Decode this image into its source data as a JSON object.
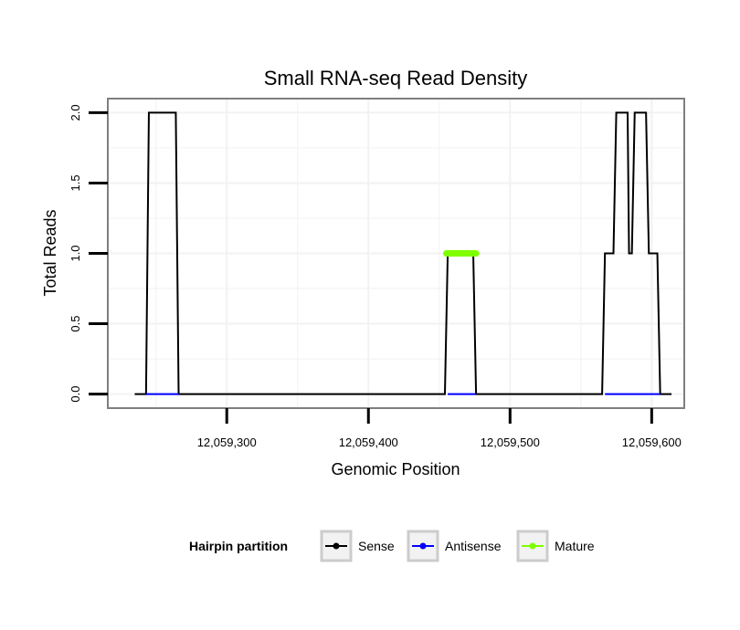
{
  "chart_data": {
    "type": "line",
    "title": "Small RNA-seq Read Density",
    "xlabel": "Genomic Position",
    "ylabel": "Total Reads",
    "xlim": [
      12059216,
      12059623
    ],
    "ylim": [
      -0.1,
      2.1
    ],
    "x_ticks": [
      {
        "value": 12059300,
        "label": "12,059,300"
      },
      {
        "value": 12059400,
        "label": "12,059,400"
      },
      {
        "value": 12059500,
        "label": "12,059,500"
      },
      {
        "value": 12059600,
        "label": "12,059,600"
      }
    ],
    "y_ticks": [
      {
        "value": 0.0,
        "label": "0.0"
      },
      {
        "value": 0.5,
        "label": "0.5"
      },
      {
        "value": 1.0,
        "label": "1.0"
      },
      {
        "value": 1.5,
        "label": "1.5"
      },
      {
        "value": 2.0,
        "label": "2.0"
      }
    ],
    "grid": true,
    "series": [
      {
        "name": "Sense",
        "color": "#000000",
        "x": [
          12059235,
          12059243,
          12059245,
          12059264,
          12059266,
          12059454,
          12059456,
          12059474,
          12059476,
          12059565,
          12059567,
          12059573,
          12059575,
          12059583,
          12059584,
          12059586,
          12059588,
          12059596,
          12059598,
          12059604,
          12059606,
          12059614
        ],
        "y": [
          0,
          0,
          2,
          2,
          0,
          0,
          1,
          1,
          0,
          0,
          1,
          1,
          2,
          2,
          1,
          1,
          2,
          2,
          1,
          1,
          0,
          0
        ]
      },
      {
        "name": "Antisense",
        "color": "#0000ff",
        "x": [
          12059243,
          12059266,
          12059456,
          12059476,
          12059567,
          12059606
        ],
        "y": [
          0,
          0,
          0,
          0,
          0,
          0
        ],
        "segments": [
          [
            0,
            1
          ],
          [
            2,
            3
          ],
          [
            4,
            5
          ]
        ]
      },
      {
        "name": "Mature",
        "color": "#7fff00",
        "x": [
          12059455,
          12059476
        ],
        "y": [
          1,
          1
        ]
      }
    ],
    "legend": {
      "title": "Hairpin partition",
      "position": "bottom",
      "entries": [
        "Sense",
        "Antisense",
        "Mature"
      ]
    }
  }
}
